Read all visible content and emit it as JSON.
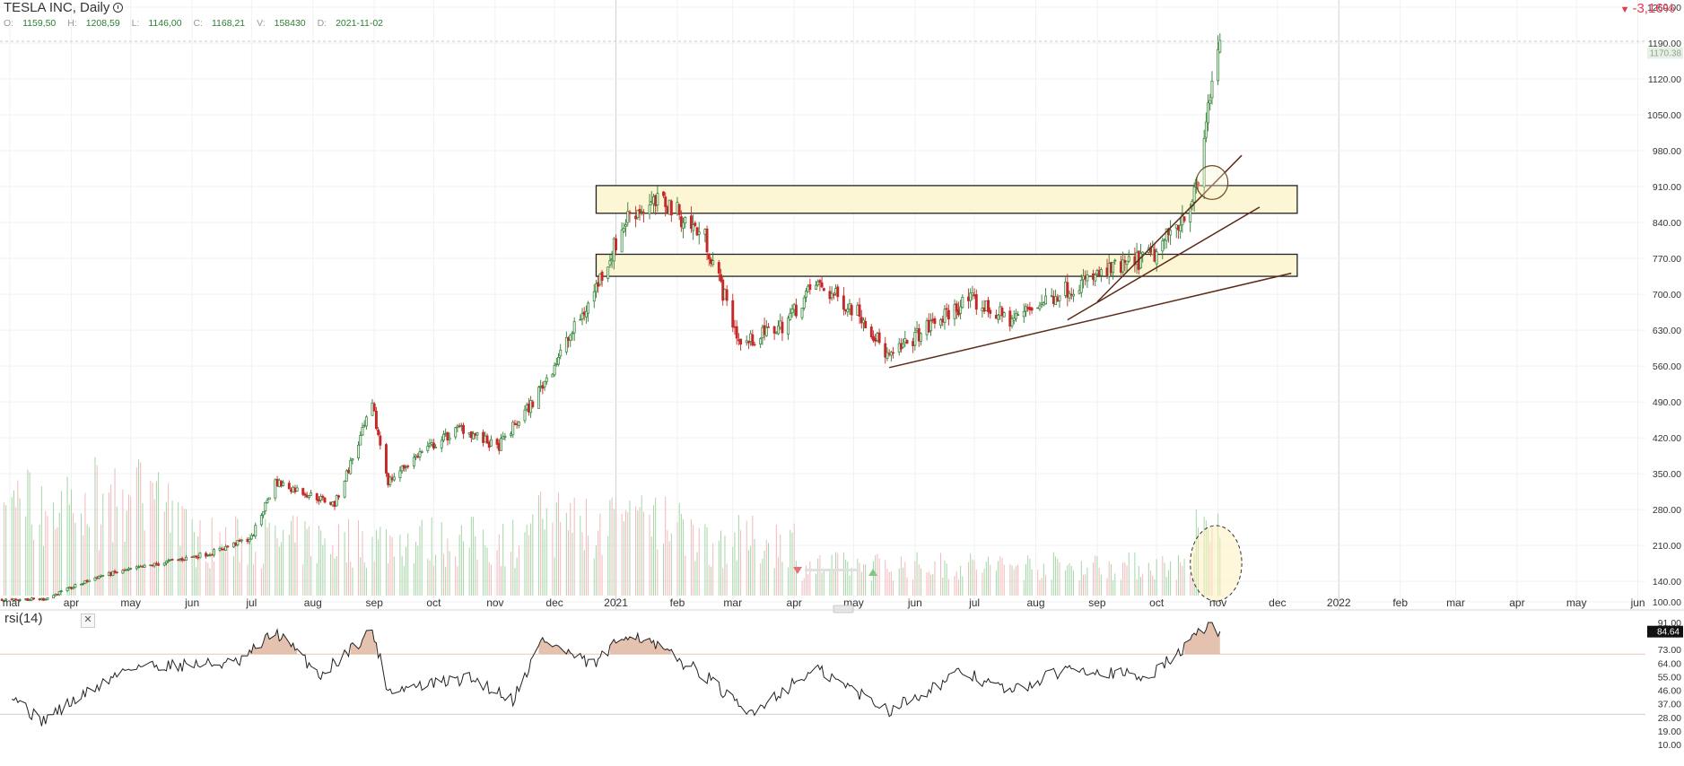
{
  "header": {
    "title": "TESLA INC, Daily",
    "ohlc": [
      {
        "k": "O:",
        "v": "1159,50"
      },
      {
        "k": "H:",
        "v": "1208,59"
      },
      {
        "k": "L:",
        "v": "1146,00"
      },
      {
        "k": "C:",
        "v": "1168,21"
      },
      {
        "k": "V:",
        "v": "158430"
      },
      {
        "k": "D:",
        "v": "2021-11-02"
      }
    ],
    "change": "-3,16%",
    "change_icon": "triangle-down-icon"
  },
  "price_badge": "1170.38",
  "rsi_badge": "84.64",
  "rsi_label": "rsi(14)",
  "colors": {
    "up": "#2e7d32",
    "down": "#c62828",
    "zone_fill": "#fdf6d5",
    "zone_stroke": "#222222",
    "trendline": "#5d2a18",
    "rsi_fill": "#dcae96",
    "accent_negative": "#e53950"
  },
  "chart_data": [
    {
      "type": "candlestick",
      "title": "TESLA INC, Daily",
      "x_tick_labels": [
        "mar",
        "apr",
        "may",
        "jun",
        "jul",
        "aug",
        "sep",
        "oct",
        "nov",
        "dec",
        "2021",
        "feb",
        "mar",
        "apr",
        "may",
        "jun",
        "jul",
        "aug",
        "sep",
        "oct",
        "nov",
        "dec",
        "2022",
        "feb",
        "mar",
        "apr",
        "may",
        "jun"
      ],
      "y_tick_labels": [
        "1260.00",
        "1190.00",
        "1120.00",
        "1050.00",
        "980.00",
        "910.00",
        "840.00",
        "770.00",
        "700.00",
        "630.00",
        "560.00",
        "490.00",
        "420.00",
        "350.00",
        "280.00",
        "210.00",
        "140.00",
        "100.00"
      ],
      "ylim": [
        100,
        1260
      ],
      "key_points": [
        {
          "date": "2020-03-18",
          "price": 105
        },
        {
          "date": "2020-04-15",
          "price": 150
        },
        {
          "date": "2020-06-10",
          "price": 195
        },
        {
          "date": "2020-07-01",
          "price": 225
        },
        {
          "date": "2020-07-13",
          "price": 335
        },
        {
          "date": "2020-08-12",
          "price": 290
        },
        {
          "date": "2020-08-31",
          "price": 480
        },
        {
          "date": "2020-09-08",
          "price": 335
        },
        {
          "date": "2020-09-24",
          "price": 390
        },
        {
          "date": "2020-10-15",
          "price": 440
        },
        {
          "date": "2020-11-02",
          "price": 400
        },
        {
          "date": "2020-11-20",
          "price": 490
        },
        {
          "date": "2020-12-18",
          "price": 680
        },
        {
          "date": "2021-01-08",
          "price": 860
        },
        {
          "date": "2021-01-26",
          "price": 880
        },
        {
          "date": "2021-02-15",
          "price": 810
        },
        {
          "date": "2021-03-05",
          "price": 600
        },
        {
          "date": "2021-03-26",
          "price": 640
        },
        {
          "date": "2021-04-12",
          "price": 720
        },
        {
          "date": "2021-05-04",
          "price": 665
        },
        {
          "date": "2021-05-19",
          "price": 575
        },
        {
          "date": "2021-06-02",
          "price": 620
        },
        {
          "date": "2021-06-28",
          "price": 690
        },
        {
          "date": "2021-07-19",
          "price": 650
        },
        {
          "date": "2021-08-16",
          "price": 710
        },
        {
          "date": "2021-09-01",
          "price": 735
        },
        {
          "date": "2021-10-01",
          "price": 780
        },
        {
          "date": "2021-10-15",
          "price": 860
        },
        {
          "date": "2021-10-22",
          "price": 910
        },
        {
          "date": "2021-10-26",
          "price": 1040
        },
        {
          "date": "2021-11-01",
          "price": 1190
        },
        {
          "date": "2021-11-02",
          "price": 1168
        }
      ],
      "zones": [
        [
          858,
          912
        ],
        [
          735,
          778
        ]
      ],
      "trendlines": [
        [
          {
            "date": "2021-05-19",
            "price": 557
          },
          {
            "date": "2021-12-08",
            "price": 741
          }
        ],
        [
          {
            "date": "2021-08-17",
            "price": 650
          },
          {
            "date": "2021-11-22",
            "price": 870
          }
        ],
        [
          {
            "date": "2021-09-01",
            "price": 685
          },
          {
            "date": "2021-11-13",
            "price": 971
          }
        ]
      ],
      "ellipses": [
        {
          "center_date": "2021-10-29",
          "center_price": 918,
          "radius_days": 8,
          "radius_price": 33
        }
      ],
      "volume_highlight": {
        "from": "2021-10-18",
        "to": "2021-11-13"
      }
    },
    {
      "type": "line",
      "title": "rsi(14)",
      "y_tick_labels": [
        "91.00",
        "73.00",
        "64.00",
        "55.00",
        "46.00",
        "37.00",
        "28.00",
        "19.00",
        "10.00"
      ],
      "ylim": [
        10,
        91
      ],
      "levels": [
        70,
        30
      ],
      "key_points": [
        {
          "date": "2020-03-01",
          "value": 46
        },
        {
          "date": "2020-03-16",
          "value": 25
        },
        {
          "date": "2020-05-01",
          "value": 62
        },
        {
          "date": "2020-06-25",
          "value": 64
        },
        {
          "date": "2020-07-13",
          "value": 85
        },
        {
          "date": "2020-08-05",
          "value": 56
        },
        {
          "date": "2020-08-31",
          "value": 86
        },
        {
          "date": "2020-09-08",
          "value": 46
        },
        {
          "date": "2020-10-20",
          "value": 54
        },
        {
          "date": "2020-11-10",
          "value": 40
        },
        {
          "date": "2020-11-25",
          "value": 80
        },
        {
          "date": "2020-12-20",
          "value": 62
        },
        {
          "date": "2021-01-08",
          "value": 85
        },
        {
          "date": "2021-02-15",
          "value": 56
        },
        {
          "date": "2021-03-08",
          "value": 30
        },
        {
          "date": "2021-04-12",
          "value": 60
        },
        {
          "date": "2021-05-19",
          "value": 33
        },
        {
          "date": "2021-06-25",
          "value": 58
        },
        {
          "date": "2021-07-20",
          "value": 45
        },
        {
          "date": "2021-08-20",
          "value": 62
        },
        {
          "date": "2021-09-25",
          "value": 54
        },
        {
          "date": "2021-10-10",
          "value": 68
        },
        {
          "date": "2021-10-28",
          "value": 91
        },
        {
          "date": "2021-11-02",
          "value": 84.64
        }
      ]
    }
  ]
}
